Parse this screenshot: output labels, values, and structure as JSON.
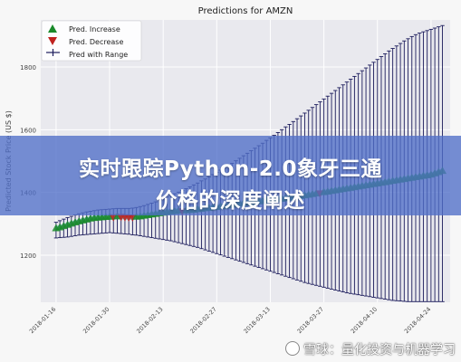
{
  "chart_data": {
    "type": "line",
    "title": "Predictions for AMZN",
    "ylabel": "Predicted Stock Price (US $)",
    "xlabel": "",
    "ylim": [
      1050,
      1950
    ],
    "y_ticks": [
      1200,
      1400,
      1600,
      1800
    ],
    "x_ticks": [
      "2018-01-16",
      "2018-01-30",
      "2018-02-13",
      "2018-02-27",
      "2018-03-13",
      "2018-03-27",
      "2018-04-10",
      "2018-04-24"
    ],
    "grid": true,
    "legend_placement": "top-left",
    "legend": [
      "Pred. Increase",
      "Pred. Decrease",
      "Pred with Range"
    ],
    "colors": {
      "increase": "#1a8a2a",
      "decrease": "#c0221f",
      "range": "#1c1c5c",
      "fill": "#2aa198",
      "grid": "#ffffff",
      "axes_bg": "#e9e9ee"
    },
    "series": [
      {
        "name": "Pred with Range",
        "x": [
          "2018-01-16",
          "2018-01-17",
          "2018-01-18",
          "2018-01-19",
          "2018-01-20",
          "2018-01-21",
          "2018-01-22",
          "2018-01-23",
          "2018-01-24",
          "2018-01-25",
          "2018-01-26",
          "2018-01-27",
          "2018-01-28",
          "2018-01-29",
          "2018-01-30",
          "2018-01-31",
          "2018-02-01",
          "2018-02-02",
          "2018-02-03",
          "2018-02-04",
          "2018-02-05",
          "2018-02-06",
          "2018-02-07",
          "2018-02-08",
          "2018-02-09",
          "2018-02-10",
          "2018-02-11",
          "2018-02-12",
          "2018-02-13",
          "2018-02-14",
          "2018-02-15",
          "2018-02-16",
          "2018-02-17",
          "2018-02-18",
          "2018-02-19",
          "2018-02-20",
          "2018-02-21",
          "2018-02-22",
          "2018-02-23",
          "2018-02-24",
          "2018-02-25",
          "2018-02-26",
          "2018-02-27",
          "2018-02-28",
          "2018-03-01",
          "2018-03-02",
          "2018-03-03",
          "2018-03-04",
          "2018-03-05",
          "2018-03-06",
          "2018-03-07",
          "2018-03-08",
          "2018-03-09",
          "2018-03-10",
          "2018-03-11",
          "2018-03-12",
          "2018-03-13",
          "2018-03-14",
          "2018-03-15",
          "2018-03-16",
          "2018-03-17",
          "2018-03-18",
          "2018-03-19",
          "2018-03-20",
          "2018-03-21",
          "2018-03-22",
          "2018-03-23",
          "2018-03-24",
          "2018-03-25",
          "2018-03-26",
          "2018-03-27",
          "2018-03-28",
          "2018-03-29",
          "2018-03-30",
          "2018-03-31",
          "2018-04-01",
          "2018-04-02",
          "2018-04-03",
          "2018-04-04",
          "2018-04-05",
          "2018-04-06",
          "2018-04-07",
          "2018-04-08",
          "2018-04-09",
          "2018-04-10",
          "2018-04-11",
          "2018-04-12",
          "2018-04-13",
          "2018-04-14",
          "2018-04-15",
          "2018-04-16",
          "2018-04-17",
          "2018-04-18",
          "2018-04-19",
          "2018-04-20",
          "2018-04-21",
          "2018-04-22",
          "2018-04-23",
          "2018-04-24",
          "2018-04-25",
          "2018-04-26",
          "2018-04-27"
        ],
        "values": [
          1285,
          1288,
          1292,
          1296,
          1300,
          1304,
          1307,
          1310,
          1313,
          1316,
          1318,
          1319,
          1320,
          1321,
          1322,
          1322,
          1323,
          1323,
          1322,
          1321,
          1321,
          1322,
          1323,
          1325,
          1327,
          1329,
          1331,
          1333,
          1335,
          1337,
          1339,
          1340,
          1341,
          1341,
          1342,
          1343,
          1344,
          1346,
          1347,
          1349,
          1350,
          1352,
          1353,
          1355,
          1356,
          1358,
          1360,
          1362,
          1363,
          1365,
          1366,
          1368,
          1369,
          1371,
          1372,
          1374,
          1375,
          1376,
          1378,
          1379,
          1381,
          1382,
          1384,
          1386,
          1388,
          1390,
          1392,
          1394,
          1396,
          1398,
          1400,
          1402,
          1404,
          1406,
          1408,
          1410,
          1412,
          1414,
          1416,
          1418,
          1420,
          1422,
          1424,
          1426,
          1428,
          1430,
          1432,
          1434,
          1436,
          1438,
          1440,
          1442,
          1444,
          1446,
          1448,
          1450,
          1452,
          1454,
          1456,
          1460,
          1464,
          1468
        ],
        "upper": [
          1305,
          1310,
          1315,
          1320,
          1324,
          1328,
          1332,
          1335,
          1338,
          1340,
          1342,
          1344,
          1345,
          1346,
          1347,
          1348,
          1349,
          1349,
          1349,
          1349,
          1350,
          1352,
          1355,
          1358,
          1362,
          1366,
          1370,
          1375,
          1380,
          1385,
          1391,
          1396,
          1401,
          1406,
          1412,
          1418,
          1424,
          1430,
          1437,
          1443,
          1450,
          1457,
          1464,
          1471,
          1478,
          1485,
          1493,
          1501,
          1509,
          1517,
          1525,
          1533,
          1541,
          1549,
          1557,
          1566,
          1574,
          1582,
          1591,
          1600,
          1609,
          1617,
          1626,
          1635,
          1644,
          1653,
          1662,
          1671,
          1680,
          1689,
          1698,
          1707,
          1716,
          1725,
          1734,
          1743,
          1752,
          1761,
          1770,
          1779,
          1788,
          1797,
          1806,
          1815,
          1824,
          1833,
          1842,
          1851,
          1859,
          1867,
          1875,
          1883,
          1890,
          1897,
          1903,
          1908,
          1912,
          1916,
          1920,
          1924,
          1928,
          1932
        ],
        "lower": [
          1255,
          1256,
          1257,
          1258,
          1260,
          1262,
          1264,
          1265,
          1266,
          1267,
          1268,
          1269,
          1270,
          1271,
          1272,
          1271,
          1270,
          1269,
          1268,
          1267,
          1265,
          1264,
          1262,
          1260,
          1258,
          1256,
          1254,
          1252,
          1250,
          1248,
          1246,
          1243,
          1240,
          1237,
          1234,
          1231,
          1228,
          1225,
          1221,
          1217,
          1213,
          1209,
          1205,
          1201,
          1197,
          1193,
          1189,
          1185,
          1181,
          1177,
          1173,
          1169,
          1165,
          1161,
          1157,
          1153,
          1149,
          1145,
          1141,
          1137,
          1133,
          1129,
          1125,
          1121,
          1117,
          1113,
          1110,
          1107,
          1104,
          1101,
          1098,
          1095,
          1092,
          1089,
          1086,
          1083,
          1080,
          1078,
          1076,
          1074,
          1072,
          1070,
          1068,
          1066,
          1064,
          1062,
          1060,
          1058,
          1056,
          1055,
          1054,
          1053,
          1052,
          1052,
          1052,
          1052,
          1052,
          1052,
          1052,
          1052,
          1052,
          1052
        ],
        "direction": [
          1,
          1,
          1,
          1,
          1,
          1,
          1,
          1,
          1,
          1,
          1,
          1,
          1,
          1,
          1,
          0,
          1,
          0,
          0,
          0,
          0,
          1,
          1,
          1,
          1,
          1,
          1,
          1,
          1,
          1,
          1,
          1,
          1,
          0,
          1,
          1,
          1,
          1,
          1,
          1,
          1,
          1,
          1,
          1,
          1,
          1,
          1,
          1,
          1,
          1,
          1,
          1,
          1,
          1,
          1,
          1,
          1,
          1,
          1,
          1,
          1,
          1,
          1,
          1,
          1,
          1,
          1,
          1,
          1,
          0,
          1,
          1,
          1,
          1,
          1,
          1,
          1,
          1,
          1,
          1,
          1,
          1,
          1,
          1,
          1,
          1,
          1,
          1,
          1,
          1,
          1,
          1,
          1,
          1,
          1,
          1,
          1,
          1,
          1,
          1,
          1,
          1
        ]
      }
    ]
  },
  "overlay": {
    "headline_line1": "实时跟踪Python-2.0象牙三通",
    "headline_line2": "价格的深度阐述"
  },
  "watermark": {
    "text": "雪球：量化投资与机器学习"
  }
}
